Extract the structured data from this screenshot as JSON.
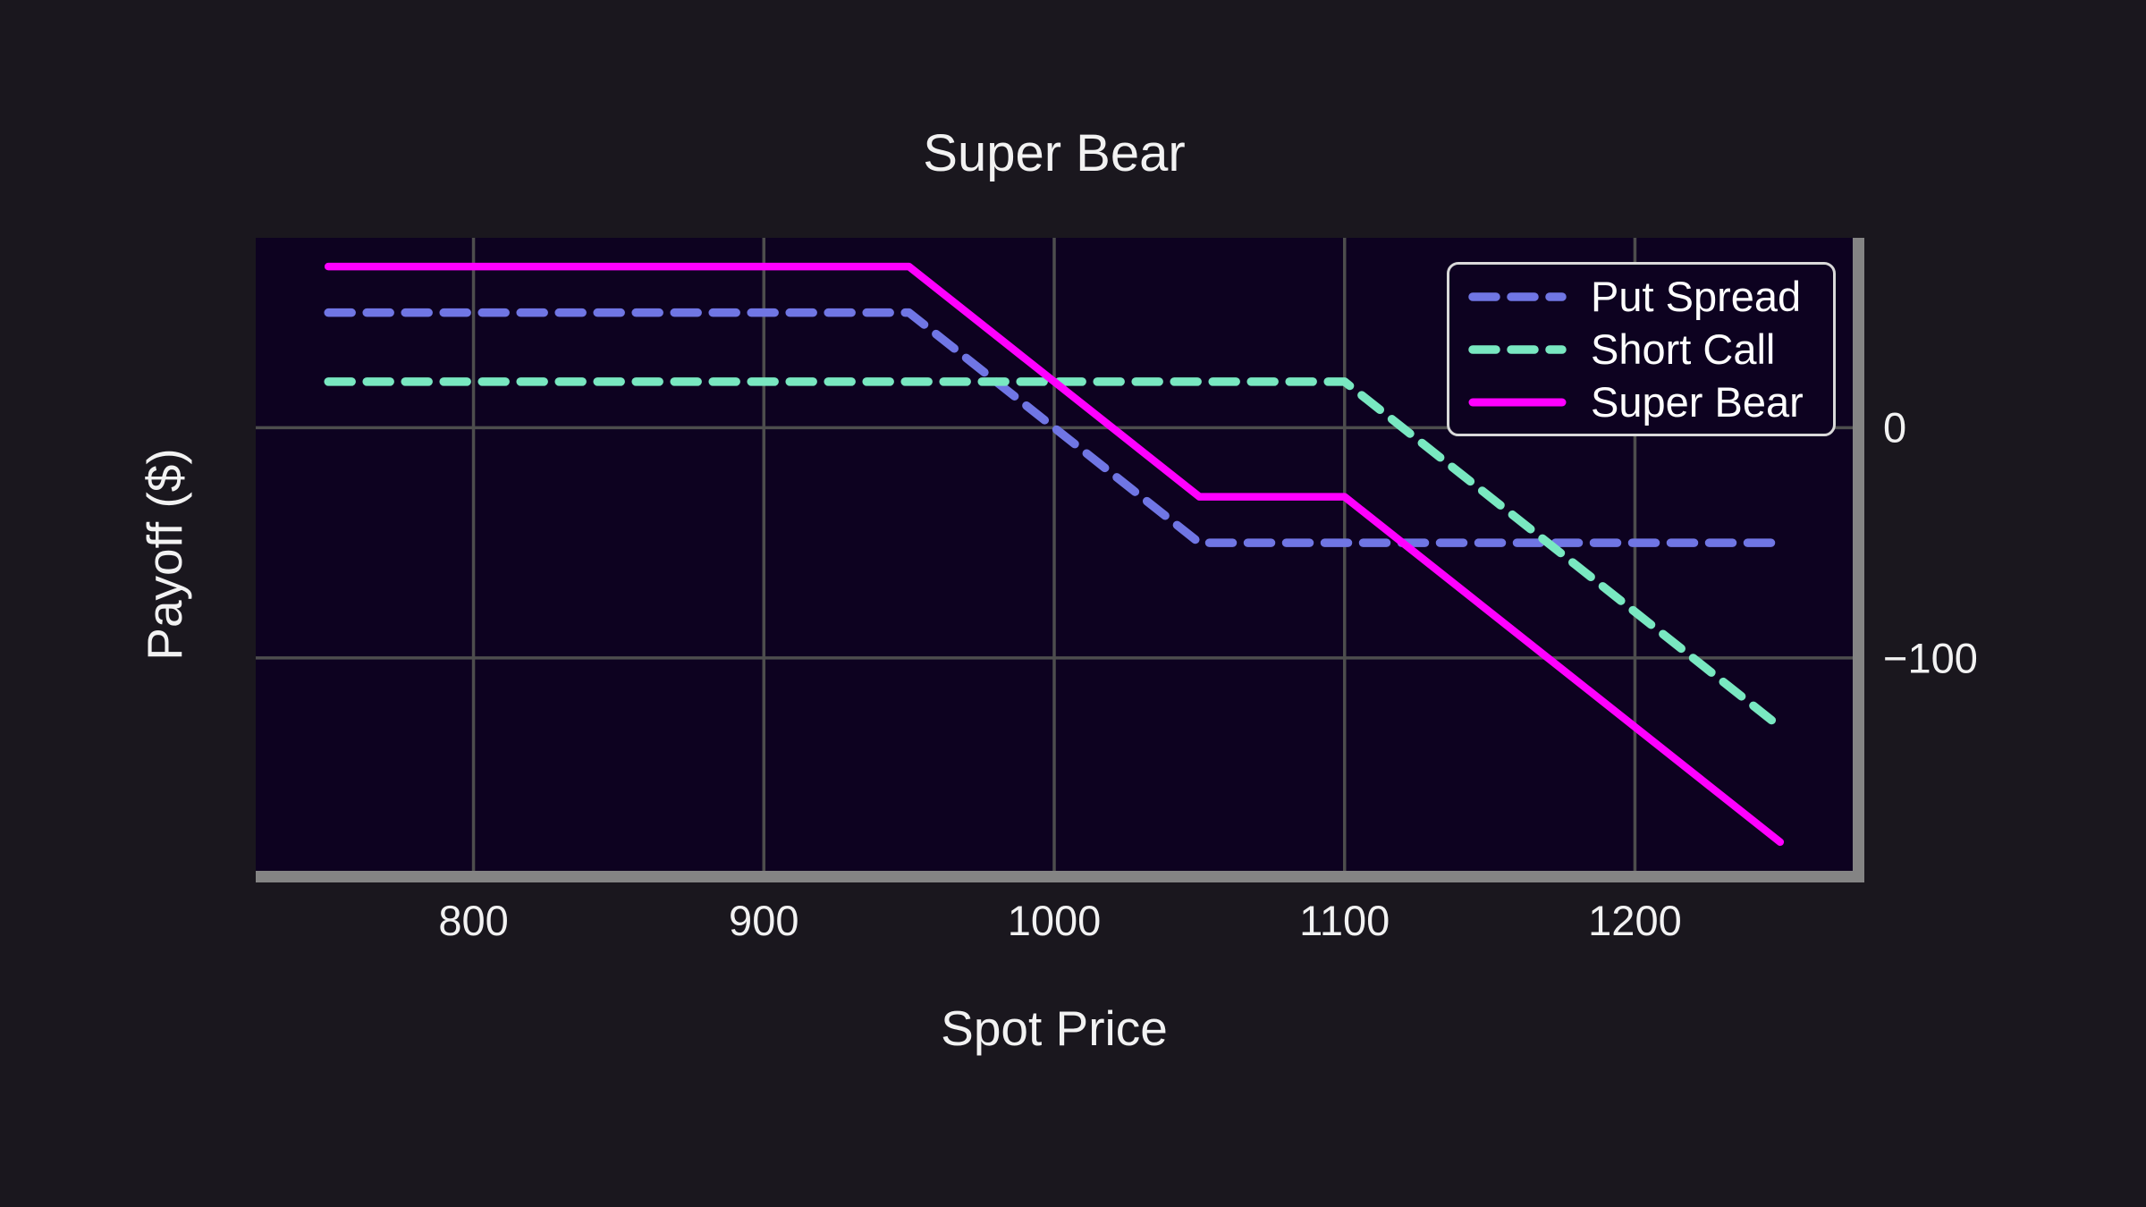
{
  "chart_data": {
    "type": "line",
    "title": "Super Bear",
    "xlabel": "Spot Price",
    "ylabel": "Payoff ($)",
    "xlim": [
      725,
      1275
    ],
    "ylim": [
      -192.5,
      82.5
    ],
    "x_ticks": [
      800,
      900,
      1000,
      1100,
      1200
    ],
    "x_tick_labels": [
      "800",
      "900",
      "1000",
      "1100",
      "1200"
    ],
    "y_ticks": [
      0,
      -100
    ],
    "y_tick_labels": [
      "0",
      "−100"
    ],
    "grid": true,
    "legend_position": "upper right",
    "colors": {
      "figure_background": "#1a171e",
      "plot_background": "#0d0220",
      "grid": "#4d4d4d",
      "spine": "#848484",
      "text": "#f2f2f2"
    },
    "series": [
      {
        "name": "Put Spread",
        "color": "#7076e4",
        "line_style": "dashed",
        "points": [
          [
            750,
            50
          ],
          [
            950,
            50
          ],
          [
            1050,
            -50
          ],
          [
            1250,
            -50
          ]
        ]
      },
      {
        "name": "Short Call",
        "color": "#79e8c1",
        "line_style": "dashed",
        "points": [
          [
            750,
            20
          ],
          [
            1100,
            20
          ],
          [
            1250,
            -130
          ]
        ]
      },
      {
        "name": "Super Bear",
        "color": "#ff00ff",
        "line_style": "solid",
        "points": [
          [
            750,
            70
          ],
          [
            950,
            70
          ],
          [
            1050,
            -30
          ],
          [
            1100,
            -30
          ],
          [
            1250,
            -180
          ]
        ]
      }
    ]
  }
}
